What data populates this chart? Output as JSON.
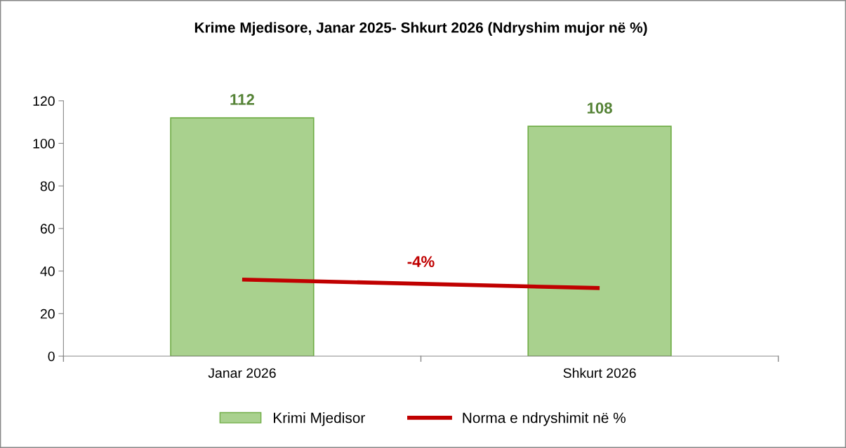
{
  "chart_data": {
    "type": "bar",
    "title": "Krime Mjedisore, Janar 2025- Shkurt 2026 (Ndryshim mujor në %)",
    "categories": [
      "Janar 2026",
      "Shkurt 2026"
    ],
    "series": [
      {
        "name": "Krimi Mjedisor",
        "color": "#a9d18e",
        "values": [
          112,
          108
        ],
        "value_labels": [
          "112",
          "108"
        ]
      },
      {
        "name": "Norma e ndryshimit në %",
        "type": "line",
        "color": "#c00000",
        "values": [
          36,
          32
        ]
      }
    ],
    "annotations": [
      "-4%"
    ],
    "ylim": [
      0,
      120
    ],
    "yticks": [
      0,
      20,
      40,
      60,
      80,
      100,
      120
    ],
    "grid": false,
    "legend": "bottom",
    "marker": "none",
    "line_style": "solid"
  }
}
